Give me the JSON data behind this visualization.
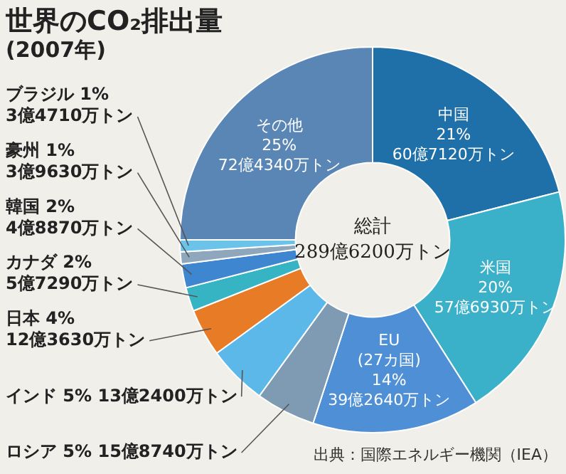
{
  "chart_data": {
    "type": "donut",
    "title": "世界のCO₂排出量",
    "subtitle": "(2007年)",
    "categories": [
      "中国",
      "米国",
      "EU\n(27カ国)",
      "ロシア",
      "インド",
      "日本",
      "カナダ",
      "韓国",
      "豪州",
      "ブラジル",
      "その他"
    ],
    "values": [
      21,
      20,
      14,
      5,
      5,
      4,
      2,
      2,
      1,
      1,
      25
    ],
    "value_labels": [
      "21%\n60億7120万トン",
      "20%\n57億6930万トン",
      "14%\n39億2640万トン",
      "5% 15億8740万トン",
      "5% 13億2400万トン",
      "4%\n12億3630万トン",
      "2%\n5億7290万トン",
      "2%\n4億8870万トン",
      "1%\n3億9630万トン",
      "1%\n3億4710万トン",
      "25%\n72億4340万トン"
    ],
    "colors": [
      "#1f6fa8",
      "#3bb0c9",
      "#4f8fd6",
      "#7f9bb3",
      "#5bb8e8",
      "#e87b25",
      "#37b4c4",
      "#3f86d0",
      "#8fa7bd",
      "#6cc3ea",
      "#5a86b5"
    ],
    "legend": false,
    "annotations": [
      "総計\n289億6200万トン",
      "出典：国際エネルギー機関（IEA）"
    ]
  }
}
